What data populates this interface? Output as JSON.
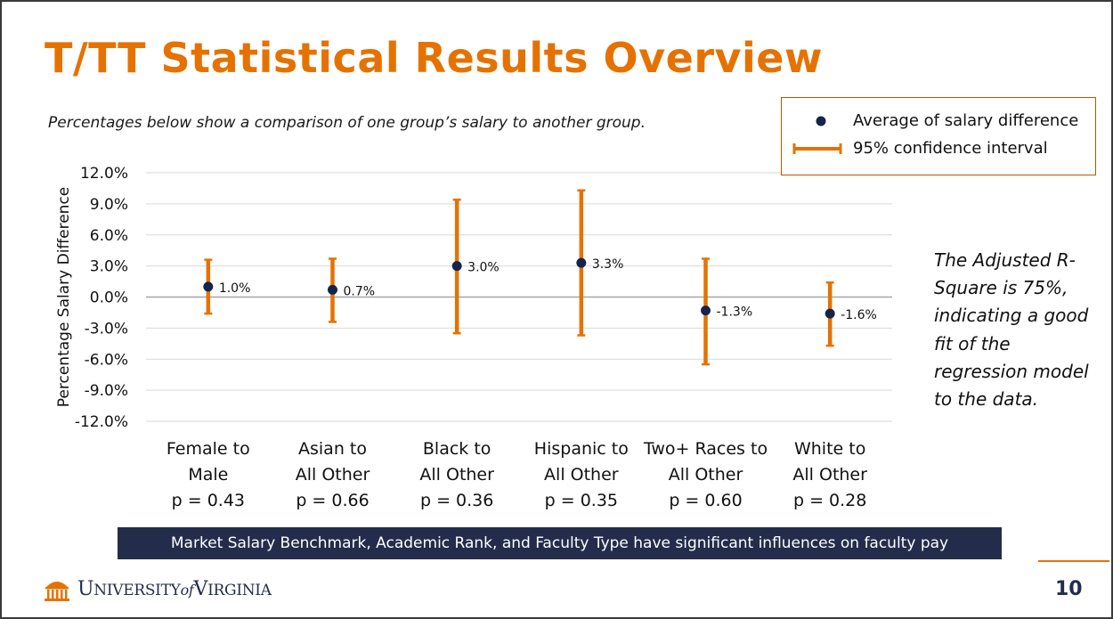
{
  "slide": {
    "title": "T/TT Statistical Results Overview",
    "subtitle": "Percentages below show a comparison of one group’s salary to another group.",
    "side_note": "The Adjusted R-Square is 75%, indicating a good fit of the regression model to the data.",
    "banner": "Market Salary Benchmark, Academic Rank, and Faculty Type have significant influences on faculty pay",
    "page_number": "10",
    "logo": {
      "main_a": "U",
      "main_b": "NIVERSITY",
      "of": "of",
      "main_c": "V",
      "main_d": "IRGINIA",
      "icon": "rotunda-icon"
    }
  },
  "legend": {
    "point_label": "Average of salary difference",
    "interval_label": "95% confidence interval"
  },
  "colors": {
    "accent": "#e57200",
    "navy": "#232d4b",
    "point": "#14244a",
    "grid": "#d9d9d9"
  },
  "chart_data": {
    "type": "scatter",
    "ylabel": "Percentage Salary Difference",
    "ylim": [
      -12,
      12
    ],
    "yticks": [
      12,
      9,
      6,
      3,
      0,
      -3,
      -6,
      -9,
      -12
    ],
    "ytick_labels": [
      "12.0%",
      "9.0%",
      "6.0%",
      "3.0%",
      "0.0%",
      "-3.0%",
      "-6.0%",
      "-9.0%",
      "-12.0%"
    ],
    "grid": true,
    "legend_position": "top-right",
    "categories": [
      {
        "line1": "Female to",
        "line2": "Male",
        "line3": "p = 0.43"
      },
      {
        "line1": "Asian to",
        "line2": "All Other",
        "line3": "p = 0.66"
      },
      {
        "line1": "Black to",
        "line2": "All Other",
        "line3": "p = 0.36"
      },
      {
        "line1": "Hispanic to",
        "line2": "All Other",
        "line3": "p = 0.35"
      },
      {
        "line1": "Two+ Races to",
        "line2": "All Other",
        "line3": "p = 0.60"
      },
      {
        "line1": "White to",
        "line2": "All Other",
        "line3": "p = 0.28"
      }
    ],
    "values": [
      1.0,
      0.7,
      3.0,
      3.3,
      -1.3,
      -1.6
    ],
    "value_labels": [
      "1.0%",
      "0.7%",
      "3.0%",
      "3.3%",
      "-1.3%",
      "-1.6%"
    ],
    "ci_low": [
      -1.6,
      -2.4,
      -3.5,
      -3.7,
      -6.5,
      -4.7
    ],
    "ci_high": [
      3.6,
      3.7,
      9.4,
      10.3,
      3.7,
      1.4
    ]
  }
}
